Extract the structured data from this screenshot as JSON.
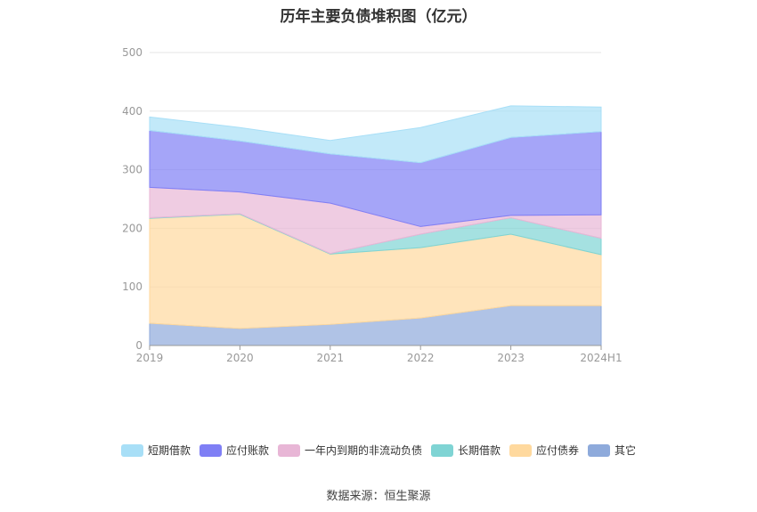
{
  "title": "历年主要负债堆积图（亿元）",
  "source": "数据来源：恒生聚源",
  "chart_data": {
    "type": "area",
    "stacked": true,
    "categories": [
      "2019",
      "2020",
      "2021",
      "2022",
      "2023",
      "2024H1"
    ],
    "ylim": [
      0,
      500
    ],
    "yticks": [
      0,
      100,
      200,
      300,
      400,
      500
    ],
    "grid": true,
    "legend_position": "bottom",
    "series": [
      {
        "name": "其它",
        "color": "#8eaadb",
        "values": [
          38,
          29,
          36,
          47,
          68,
          68
        ]
      },
      {
        "name": "应付债券",
        "color": "#ffd99e",
        "values": [
          179,
          195,
          120,
          120,
          122,
          87
        ]
      },
      {
        "name": "长期借款",
        "color": "#7fd4d4",
        "values": [
          1,
          1,
          1,
          23,
          28,
          28
        ]
      },
      {
        "name": "一年内到期的非流动负债",
        "color": "#e8b6d6",
        "values": [
          52,
          37,
          86,
          13,
          4,
          40
        ]
      },
      {
        "name": "应付账款",
        "color": "#7f7ff5",
        "values": [
          97,
          87,
          84,
          109,
          133,
          142
        ]
      },
      {
        "name": "短期借款",
        "color": "#a8dff7",
        "values": [
          23,
          23,
          23,
          60,
          54,
          42
        ]
      }
    ]
  }
}
